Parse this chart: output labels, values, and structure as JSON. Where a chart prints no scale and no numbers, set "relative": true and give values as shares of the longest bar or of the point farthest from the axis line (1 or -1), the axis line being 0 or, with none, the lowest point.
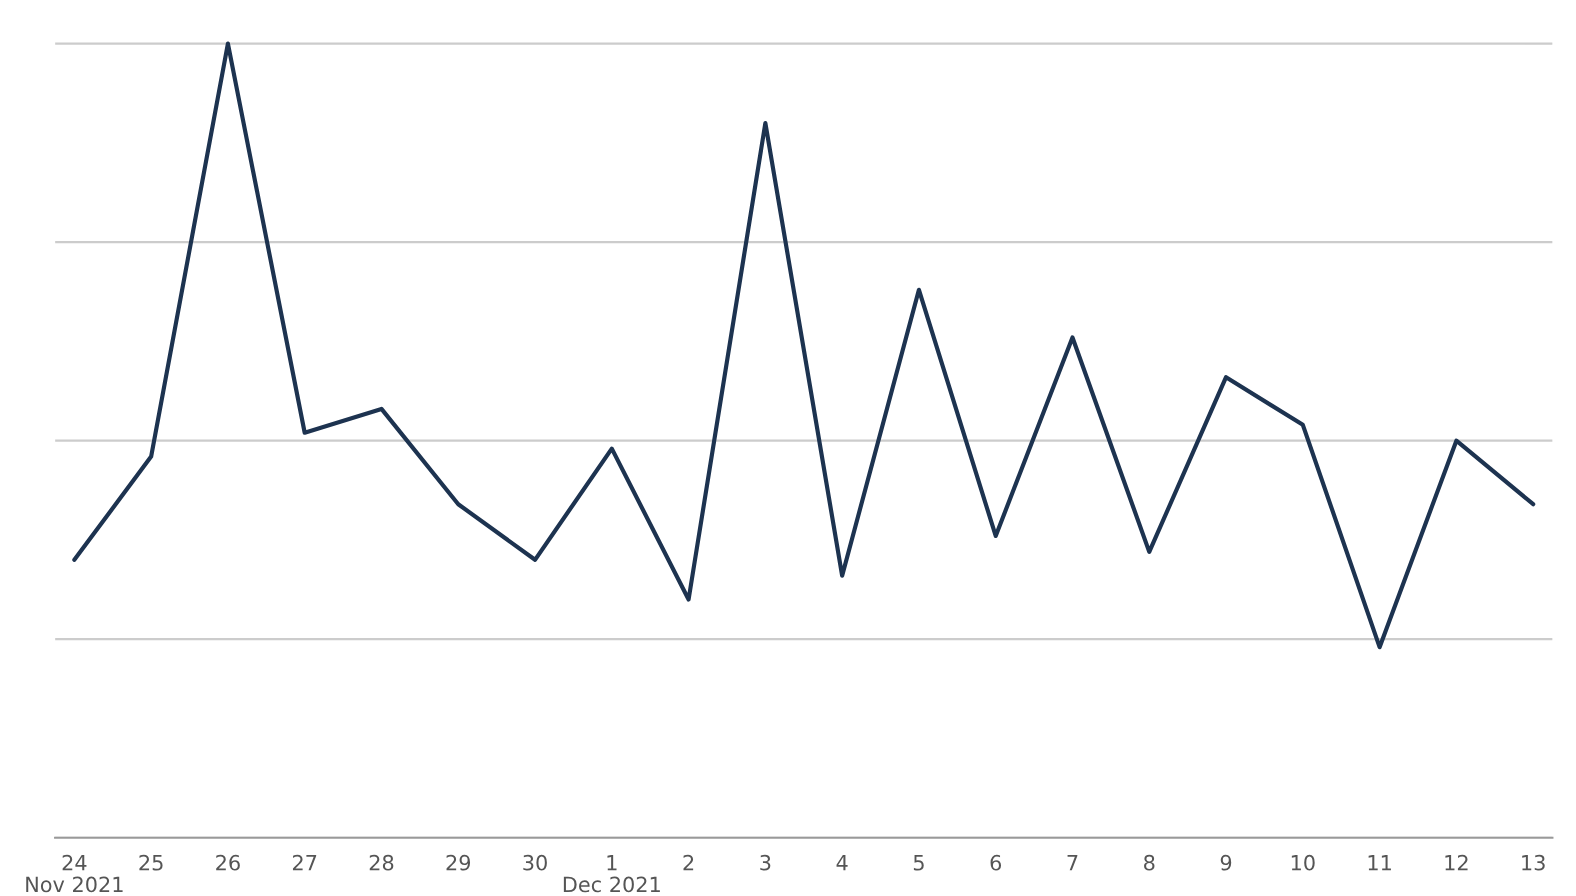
{
  "chart_data": {
    "type": "line",
    "relative": true,
    "grid": "y",
    "marker": "none",
    "line_style": "solid",
    "categories": [
      "24\nNov 2021",
      "25",
      "26",
      "27",
      "28",
      "29",
      "30",
      "1\nDec 2021",
      "2",
      "3",
      "4",
      "5",
      "6",
      "7",
      "8",
      "9",
      "10",
      "11",
      "12",
      "13"
    ],
    "series": [
      {
        "color": "#1d3350",
        "values": [
          0.35,
          0.48,
          1,
          0.51,
          0.54,
          0.42,
          0.35,
          0.49,
          0.3,
          0.9,
          0.33,
          0.69,
          0.38,
          0.63,
          0.36,
          0.58,
          0.52,
          0.24,
          0.5,
          0.42
        ]
      }
    ]
  }
}
